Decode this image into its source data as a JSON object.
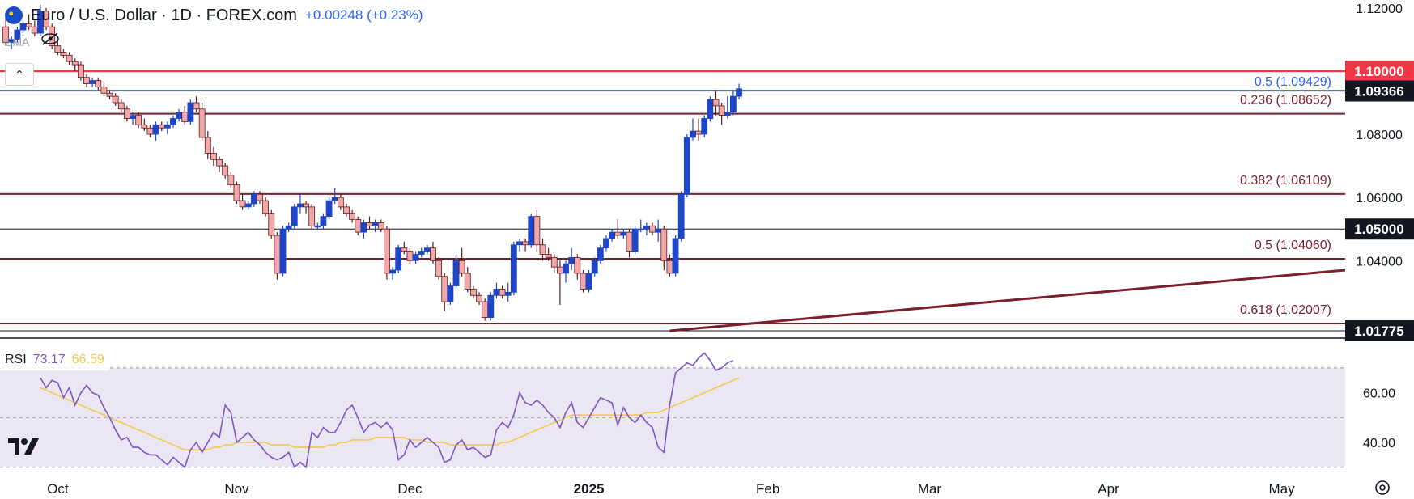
{
  "header": {
    "title": "Euro / U.S. Dollar · 1D · FOREX.com",
    "change": "+0.00248 (+0.23%)",
    "indicator": "SMA"
  },
  "rsi_legend": {
    "name": "RSI",
    "value": "73.17",
    "ma_value": "66.59"
  },
  "colors": {
    "up": "#1e46c8",
    "down": "#f2a7a9",
    "down_border": "#5e1a1e",
    "fib": "#7a1f2b",
    "red_level": "#f23645",
    "blue_level": "#2962ff",
    "trend": "#7a1f2b",
    "rsi": "#7e57c2",
    "rsi_ma": "#f2c94c",
    "rsi_band": "#ebe6f3"
  },
  "chart_data": [
    {
      "type": "candlestick",
      "title": "Euro / U.S. Dollar · 1D · FOREX.com",
      "ylim": [
        1.0155,
        1.1225
      ],
      "y_ticks": [
        "1.12000",
        "1.08000",
        "1.06000",
        "1.04000"
      ],
      "x_ticks": [
        {
          "label": "Oct",
          "x": 3
        },
        {
          "label": "Nov",
          "x": 34
        },
        {
          "label": "Dec",
          "x": 64
        },
        {
          "label": "2025",
          "x": 95
        },
        {
          "label": "Feb",
          "x": 126
        },
        {
          "label": "Mar",
          "x": 154
        },
        {
          "label": "Apr",
          "x": 185
        },
        {
          "label": "May",
          "x": 215
        }
      ],
      "x_range": [
        -7,
        226
      ],
      "fib_levels": [
        {
          "label": "0.236 (1.08652)",
          "value": 1.0865
        },
        {
          "label": "0.382 (1.06109)",
          "value": 1.0611
        },
        {
          "label": "0.5 (1.04060)",
          "value": 1.0406
        },
        {
          "label": "0.618 (1.02007)",
          "value": 1.0201
        }
      ],
      "marked_levels": [
        {
          "label": "0.5 (1.09429)",
          "value": 1.0943,
          "style": "blue"
        },
        {
          "label": "1.10000",
          "value": 1.1,
          "style": "red-flag"
        },
        {
          "label": "1.09366",
          "value": 1.0937,
          "style": "black-flag"
        },
        {
          "label": "1.05000",
          "value": 1.05,
          "style": "black-flag"
        },
        {
          "label": "1.01775",
          "value": 1.0178,
          "style": "black-flag"
        }
      ],
      "trendline": [
        {
          "x": 109,
          "y": 1.0178
        },
        {
          "x": 226,
          "y": 1.037
        }
      ],
      "candles": [
        [
          -6,
          1.114,
          1.117,
          1.108,
          1.109
        ],
        [
          -5,
          1.109,
          1.111,
          1.107,
          1.11
        ],
        [
          -4,
          1.11,
          1.114,
          1.109,
          1.113
        ],
        [
          -3,
          1.113,
          1.116,
          1.112,
          1.115
        ],
        [
          -2,
          1.115,
          1.118,
          1.113,
          1.114
        ],
        [
          -1,
          1.114,
          1.116,
          1.111,
          1.112
        ],
        [
          0,
          1.112,
          1.121,
          1.111,
          1.119
        ],
        [
          1,
          1.119,
          1.12,
          1.113,
          1.114
        ],
        [
          2,
          1.114,
          1.115,
          1.107,
          1.108
        ],
        [
          3,
          1.108,
          1.11,
          1.105,
          1.106
        ],
        [
          4,
          1.106,
          1.107,
          1.104,
          1.105
        ],
        [
          5,
          1.105,
          1.106,
          1.102,
          1.103
        ],
        [
          6,
          1.103,
          1.104,
          1.1,
          1.102
        ],
        [
          7,
          1.102,
          1.103,
          1.097,
          1.098
        ],
        [
          8,
          1.098,
          1.099,
          1.095,
          1.096
        ],
        [
          9,
          1.096,
          1.098,
          1.095,
          1.097
        ],
        [
          10,
          1.097,
          1.098,
          1.094,
          1.095
        ],
        [
          11,
          1.095,
          1.096,
          1.092,
          1.093
        ],
        [
          12,
          1.093,
          1.094,
          1.091,
          1.092
        ],
        [
          13,
          1.092,
          1.093,
          1.089,
          1.09
        ],
        [
          14,
          1.09,
          1.091,
          1.087,
          1.088
        ],
        [
          15,
          1.088,
          1.089,
          1.084,
          1.085
        ],
        [
          16,
          1.085,
          1.087,
          1.083,
          1.086
        ],
        [
          17,
          1.086,
          1.087,
          1.082,
          1.083
        ],
        [
          18,
          1.083,
          1.085,
          1.081,
          1.082
        ],
        [
          19,
          1.082,
          1.083,
          1.079,
          1.08
        ],
        [
          20,
          1.08,
          1.084,
          1.078,
          1.083
        ],
        [
          21,
          1.083,
          1.084,
          1.081,
          1.082
        ],
        [
          22,
          1.082,
          1.084,
          1.08,
          1.083
        ],
        [
          23,
          1.083,
          1.086,
          1.082,
          1.085
        ],
        [
          24,
          1.085,
          1.088,
          1.084,
          1.087
        ],
        [
          25,
          1.087,
          1.089,
          1.083,
          1.084
        ],
        [
          26,
          1.084,
          1.091,
          1.083,
          1.09
        ],
        [
          27,
          1.09,
          1.092,
          1.087,
          1.088
        ],
        [
          28,
          1.088,
          1.09,
          1.078,
          1.079
        ],
        [
          29,
          1.079,
          1.081,
          1.072,
          1.074
        ],
        [
          30,
          1.074,
          1.076,
          1.07,
          1.072
        ],
        [
          31,
          1.072,
          1.073,
          1.068,
          1.07
        ],
        [
          32,
          1.07,
          1.071,
          1.066,
          1.067
        ],
        [
          33,
          1.067,
          1.068,
          1.063,
          1.064
        ],
        [
          34,
          1.064,
          1.065,
          1.058,
          1.059
        ],
        [
          35,
          1.059,
          1.061,
          1.056,
          1.057
        ],
        [
          36,
          1.057,
          1.059,
          1.056,
          1.058
        ],
        [
          37,
          1.058,
          1.062,
          1.057,
          1.061
        ],
        [
          38,
          1.061,
          1.062,
          1.058,
          1.059
        ],
        [
          39,
          1.059,
          1.06,
          1.054,
          1.055
        ],
        [
          40,
          1.055,
          1.056,
          1.047,
          1.048
        ],
        [
          41,
          1.048,
          1.049,
          1.034,
          1.036
        ],
        [
          42,
          1.036,
          1.051,
          1.035,
          1.05
        ],
        [
          43,
          1.05,
          1.052,
          1.049,
          1.051
        ],
        [
          44,
          1.051,
          1.058,
          1.05,
          1.057
        ],
        [
          45,
          1.057,
          1.061,
          1.055,
          1.058
        ],
        [
          46,
          1.058,
          1.059,
          1.055,
          1.057
        ],
        [
          47,
          1.057,
          1.058,
          1.05,
          1.051
        ],
        [
          48,
          1.051,
          1.052,
          1.05,
          1.051
        ],
        [
          49,
          1.051,
          1.055,
          1.05,
          1.054
        ],
        [
          50,
          1.054,
          1.06,
          1.053,
          1.059
        ],
        [
          51,
          1.059,
          1.063,
          1.058,
          1.06
        ],
        [
          52,
          1.06,
          1.061,
          1.056,
          1.057
        ],
        [
          53,
          1.057,
          1.058,
          1.054,
          1.055
        ],
        [
          54,
          1.055,
          1.056,
          1.052,
          1.053
        ],
        [
          55,
          1.053,
          1.054,
          1.048,
          1.049
        ],
        [
          56,
          1.049,
          1.053,
          1.047,
          1.052
        ],
        [
          57,
          1.052,
          1.054,
          1.05,
          1.051
        ],
        [
          58,
          1.051,
          1.053,
          1.049,
          1.052
        ],
        [
          59,
          1.052,
          1.053,
          1.049,
          1.05
        ],
        [
          60,
          1.05,
          1.051,
          1.034,
          1.036
        ],
        [
          61,
          1.036,
          1.038,
          1.034,
          1.037
        ],
        [
          62,
          1.037,
          1.045,
          1.036,
          1.044
        ],
        [
          63,
          1.044,
          1.046,
          1.042,
          1.043
        ],
        [
          64,
          1.043,
          1.044,
          1.039,
          1.04
        ],
        [
          65,
          1.04,
          1.043,
          1.039,
          1.042
        ],
        [
          66,
          1.042,
          1.044,
          1.041,
          1.043
        ],
        [
          67,
          1.043,
          1.045,
          1.042,
          1.044
        ],
        [
          68,
          1.044,
          1.046,
          1.039,
          1.04
        ],
        [
          69,
          1.04,
          1.041,
          1.034,
          1.035
        ],
        [
          70,
          1.035,
          1.036,
          1.024,
          1.027
        ],
        [
          71,
          1.027,
          1.033,
          1.026,
          1.032
        ],
        [
          72,
          1.032,
          1.042,
          1.031,
          1.04
        ],
        [
          73,
          1.04,
          1.044,
          1.035,
          1.036
        ],
        [
          74,
          1.036,
          1.038,
          1.03,
          1.031
        ],
        [
          75,
          1.031,
          1.032,
          1.028,
          1.029
        ],
        [
          76,
          1.029,
          1.03,
          1.026,
          1.027
        ],
        [
          77,
          1.027,
          1.028,
          1.021,
          1.022
        ],
        [
          78,
          1.022,
          1.03,
          1.021,
          1.029
        ],
        [
          79,
          1.029,
          1.033,
          1.028,
          1.031
        ],
        [
          80,
          1.031,
          1.032,
          1.028,
          1.029
        ],
        [
          81,
          1.029,
          1.033,
          1.027,
          1.03
        ],
        [
          82,
          1.03,
          1.046,
          1.029,
          1.045
        ],
        [
          83,
          1.045,
          1.047,
          1.043,
          1.046
        ],
        [
          84,
          1.046,
          1.047,
          1.043,
          1.045
        ],
        [
          85,
          1.045,
          1.055,
          1.044,
          1.054
        ],
        [
          86,
          1.054,
          1.056,
          1.043,
          1.045
        ],
        [
          87,
          1.045,
          1.047,
          1.04,
          1.042
        ],
        [
          88,
          1.042,
          1.044,
          1.04,
          1.041
        ],
        [
          89,
          1.041,
          1.042,
          1.036,
          1.038
        ],
        [
          90,
          1.038,
          1.04,
          1.026,
          1.036
        ],
        [
          91,
          1.036,
          1.04,
          1.033,
          1.039
        ],
        [
          92,
          1.039,
          1.044,
          1.037,
          1.041
        ],
        [
          93,
          1.041,
          1.042,
          1.034,
          1.036
        ],
        [
          94,
          1.036,
          1.037,
          1.03,
          1.031
        ],
        [
          95,
          1.031,
          1.037,
          1.03,
          1.036
        ],
        [
          96,
          1.036,
          1.041,
          1.035,
          1.04
        ],
        [
          97,
          1.04,
          1.045,
          1.039,
          1.044
        ],
        [
          98,
          1.044,
          1.048,
          1.043,
          1.047
        ],
        [
          99,
          1.047,
          1.05,
          1.046,
          1.049
        ],
        [
          100,
          1.049,
          1.053,
          1.047,
          1.048
        ],
        [
          101,
          1.048,
          1.05,
          1.047,
          1.049
        ],
        [
          102,
          1.049,
          1.05,
          1.041,
          1.043
        ],
        [
          103,
          1.043,
          1.051,
          1.042,
          1.05
        ],
        [
          104,
          1.05,
          1.053,
          1.049,
          1.05
        ],
        [
          105,
          1.05,
          1.052,
          1.048,
          1.051
        ],
        [
          106,
          1.051,
          1.052,
          1.048,
          1.049
        ],
        [
          107,
          1.049,
          1.053,
          1.046,
          1.05
        ],
        [
          108,
          1.05,
          1.051,
          1.037,
          1.04
        ],
        [
          109,
          1.04,
          1.042,
          1.035,
          1.036
        ],
        [
          110,
          1.036,
          1.048,
          1.035,
          1.047
        ],
        [
          111,
          1.047,
          1.062,
          1.046,
          1.061
        ],
        [
          112,
          1.061,
          1.08,
          1.06,
          1.079
        ],
        [
          113,
          1.079,
          1.085,
          1.078,
          1.081
        ],
        [
          114,
          1.081,
          1.085,
          1.078,
          1.08
        ],
        [
          115,
          1.08,
          1.086,
          1.079,
          1.085
        ],
        [
          116,
          1.085,
          1.092,
          1.084,
          1.091
        ],
        [
          117,
          1.091,
          1.094,
          1.086,
          1.089
        ],
        [
          118,
          1.089,
          1.09,
          1.083,
          1.086
        ],
        [
          119,
          1.086,
          1.092,
          1.085,
          1.087
        ],
        [
          120,
          1.087,
          1.094,
          1.086,
          1.092
        ],
        [
          121,
          1.092,
          1.096,
          1.091,
          1.0944
        ]
      ]
    },
    {
      "type": "line",
      "title": "RSI",
      "ylim": [
        26,
        82
      ],
      "y_ticks": [
        "60.00",
        "40.00"
      ],
      "band": [
        30,
        70
      ],
      "midline": 50,
      "series": [
        {
          "name": "RSI",
          "values": [
            66,
            62,
            65,
            64,
            58,
            62,
            55,
            60,
            63,
            60,
            59,
            54,
            50,
            45,
            41,
            42,
            38,
            38,
            36,
            35,
            35,
            33,
            31,
            34,
            32,
            30,
            37,
            40,
            36,
            40,
            44,
            42,
            55,
            52,
            40,
            42,
            44,
            41,
            39,
            36,
            34,
            33,
            34,
            36,
            30,
            32,
            30,
            44,
            42,
            46,
            44,
            44,
            48,
            53,
            55,
            50,
            44,
            47,
            48,
            46,
            48,
            45,
            33,
            35,
            41,
            38,
            40,
            42,
            40,
            38,
            32,
            33,
            39,
            41,
            37,
            38,
            36,
            34,
            35,
            45,
            48,
            46,
            51,
            60,
            56,
            55,
            57,
            55,
            52,
            50,
            46,
            52,
            56,
            48,
            46,
            50,
            54,
            58,
            57,
            56,
            47,
            54,
            50,
            48,
            51,
            48,
            46,
            38,
            36,
            55,
            68,
            70,
            72,
            71,
            74,
            76,
            73,
            69,
            70,
            72,
            73
          ]
        },
        {
          "name": "MA",
          "values": [
            62,
            61,
            60,
            59,
            58,
            57,
            56,
            55,
            54,
            53,
            52,
            51,
            50,
            49,
            48,
            47,
            46,
            45,
            44,
            43,
            42,
            41,
            40,
            39,
            38,
            37,
            37,
            37,
            37,
            37,
            38,
            38,
            39,
            39,
            40,
            40,
            40,
            40,
            40,
            40,
            39,
            39,
            39,
            39,
            38,
            38,
            38,
            38,
            38,
            38,
            39,
            39,
            40,
            40,
            41,
            41,
            41,
            41,
            42,
            42,
            42,
            42,
            42,
            42,
            41,
            41,
            41,
            40,
            40,
            40,
            40,
            39,
            39,
            39,
            39,
            39,
            39,
            39,
            39,
            39,
            40,
            40,
            41,
            42,
            43,
            44,
            45,
            46,
            47,
            48,
            49,
            50,
            51,
            51,
            51,
            51,
            51,
            51,
            51,
            51,
            51,
            51,
            51,
            51,
            51,
            52,
            52,
            52,
            53,
            54,
            55,
            56,
            57,
            58,
            59,
            60,
            61,
            62,
            63,
            64,
            65,
            66
          ]
        }
      ]
    }
  ]
}
